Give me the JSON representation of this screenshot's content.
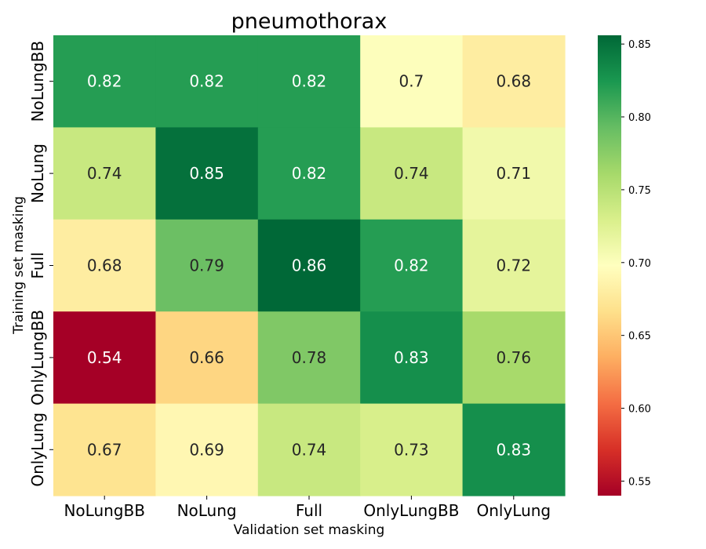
{
  "chart_data": {
    "type": "heatmap",
    "title": "pneumothorax",
    "xlabel": "Validation set masking",
    "ylabel": "Training set masking",
    "x_categories": [
      "NoLungBB",
      "NoLung",
      "Full",
      "OnlyLungBB",
      "OnlyLung"
    ],
    "y_categories": [
      "NoLungBB",
      "NoLung",
      "Full",
      "OnlyLungBB",
      "OnlyLung"
    ],
    "values": [
      [
        0.82,
        0.82,
        0.82,
        0.7,
        0.68
      ],
      [
        0.74,
        0.85,
        0.82,
        0.74,
        0.71
      ],
      [
        0.68,
        0.79,
        0.86,
        0.82,
        0.72
      ],
      [
        0.54,
        0.66,
        0.78,
        0.83,
        0.76
      ],
      [
        0.67,
        0.69,
        0.74,
        0.73,
        0.83
      ]
    ],
    "cell_labels": [
      [
        "0.82",
        "0.82",
        "0.82",
        "0.7",
        "0.68"
      ],
      [
        "0.74",
        "0.85",
        "0.82",
        "0.74",
        "0.71"
      ],
      [
        "0.68",
        "0.79",
        "0.86",
        "0.82",
        "0.72"
      ],
      [
        "0.54",
        "0.66",
        "0.78",
        "0.83",
        "0.76"
      ],
      [
        "0.67",
        "0.69",
        "0.74",
        "0.73",
        "0.83"
      ]
    ],
    "colormap": "RdYlGn",
    "color_range": [
      0.54,
      0.856
    ],
    "colorbar_ticks": [
      0.55,
      0.6,
      0.65,
      0.7,
      0.75,
      0.8,
      0.85
    ],
    "colorbar_tick_labels": [
      "0.55",
      "0.60",
      "0.65",
      "0.70",
      "0.75",
      "0.80",
      "0.85"
    ],
    "colorbar_position": "right",
    "grid": false
  }
}
